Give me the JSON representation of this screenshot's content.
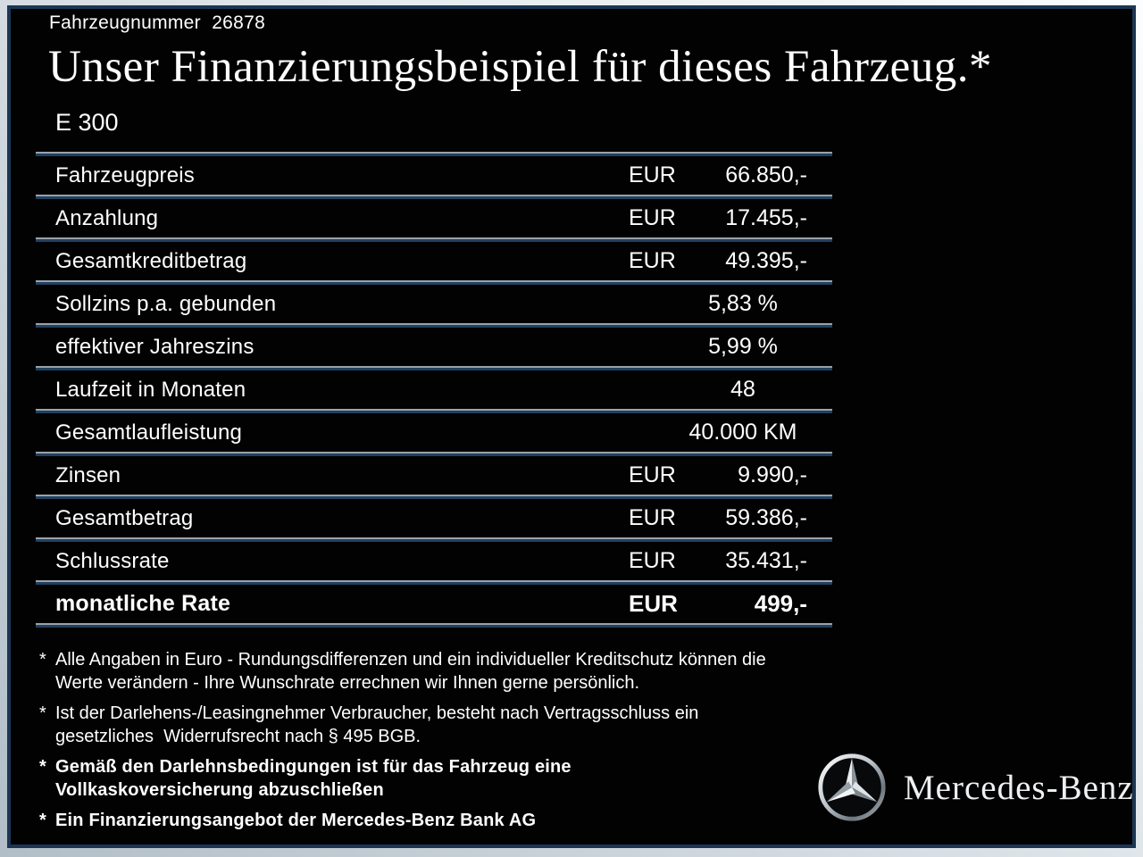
{
  "header": {
    "vehicle_number": "Fahrzeugnummer  26878",
    "title": "Unser Finanzierungsbeispiel für dieses Fahrzeug.*",
    "model": "E 300"
  },
  "table": {
    "rows": [
      {
        "label": "Fahrzeugpreis",
        "currency": "EUR",
        "amount": "66.850,-"
      },
      {
        "label": "Anzahlung",
        "currency": "EUR",
        "amount": "17.455,-"
      },
      {
        "label": "Gesamtkreditbetrag",
        "currency": "EUR",
        "amount": "49.395,-"
      },
      {
        "label": "Sollzins p.a. gebunden",
        "value": "5,83 %"
      },
      {
        "label": "effektiver Jahreszins",
        "value": "5,99 %"
      },
      {
        "label": "Laufzeit in Monaten",
        "value": "48"
      },
      {
        "label": "Gesamtlaufleistung",
        "value": "40.000 KM"
      },
      {
        "label": "Zinsen",
        "currency": "EUR",
        "amount": "9.990,-"
      },
      {
        "label": "Gesamtbetrag",
        "currency": "EUR",
        "amount": "59.386,-"
      },
      {
        "label": "Schlussrate",
        "currency": "EUR",
        "amount": "35.431,-"
      },
      {
        "label": "monatliche Rate",
        "currency": "EUR",
        "amount": "499,-",
        "emphasis": true
      }
    ]
  },
  "footnotes": [
    {
      "marker": "*",
      "bold": false,
      "lines": [
        "Alle Angaben in Euro - Rundungsdifferenzen und ein individueller Kreditschutz können die",
        "Werte verändern - Ihre Wunschrate errechnen wir Ihnen gerne persönlich."
      ]
    },
    {
      "marker": "*",
      "bold": false,
      "lines": [
        "Ist der Darlehens-/Leasingnehmer Verbraucher, besteht nach Vertragsschluss ein",
        "gesetzliches  Widerrufsrecht nach § 495 BGB."
      ]
    },
    {
      "marker": "*",
      "bold": true,
      "lines": [
        "Gemäß den Darlehnsbedingungen ist für das Fahrzeug eine",
        "Vollkaskoversicherung abzuschließen"
      ]
    },
    {
      "marker": "*",
      "bold": true,
      "lines": [
        "Ein Finanzierungsangebot der Mercedes-Benz Bank AG"
      ]
    }
  ],
  "brand": {
    "logo_icon": "mercedes-star-icon",
    "name": "Mercedes-Benz"
  },
  "colors": {
    "content_background": "#020202",
    "frame_outer_light": "#b2bec7",
    "frame_border_navy": "#1b3654",
    "divider_light": "#99a2aa",
    "divider_navy": "#20405f",
    "text": "#ffffff"
  }
}
